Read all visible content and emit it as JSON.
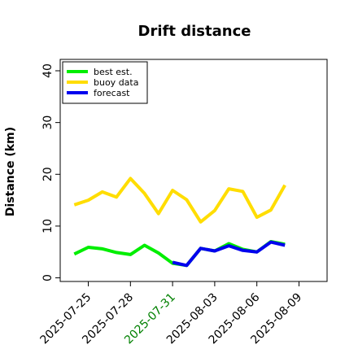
{
  "chart_data": {
    "type": "line",
    "title": "Drift distance",
    "xlabel": "",
    "ylabel": "Distance (km)",
    "x_ticks": [
      "2025-07-25",
      "2025-07-28",
      "2025-07-31",
      "2025-08-03",
      "2025-08-06",
      "2025-08-09"
    ],
    "x_tick_colors": [
      "#000000",
      "#000000",
      "#008000",
      "#000000",
      "#000000",
      "#000000"
    ],
    "xlim": [
      "2025-07-23",
      "2025-08-11"
    ],
    "y_ticks": [
      0,
      10,
      20,
      30,
      40
    ],
    "ylim": [
      -0.7,
      42.2
    ],
    "grid": false,
    "legend_position": "top-left",
    "series": [
      {
        "name": "best est.",
        "color": "#00ee00",
        "x": [
          "2025-07-24",
          "2025-07-25",
          "2025-07-26",
          "2025-07-27",
          "2025-07-28",
          "2025-07-29",
          "2025-07-30",
          "2025-07-31",
          "2025-08-01",
          "2025-08-02",
          "2025-08-03",
          "2025-08-04",
          "2025-08-05",
          "2025-08-06",
          "2025-08-07",
          "2025-08-08"
        ],
        "values": [
          4.6,
          5.9,
          5.6,
          4.9,
          4.5,
          6.3,
          4.8,
          2.8,
          2.4,
          5.7,
          5.2,
          6.6,
          5.5,
          5.0,
          7.0,
          6.5
        ]
      },
      {
        "name": "buoy data",
        "color": "#ffdd00",
        "x": [
          "2025-07-24",
          "2025-07-25",
          "2025-07-26",
          "2025-07-27",
          "2025-07-28",
          "2025-07-29",
          "2025-07-30",
          "2025-07-31",
          "2025-08-01",
          "2025-08-02",
          "2025-08-03",
          "2025-08-04",
          "2025-08-05",
          "2025-08-06",
          "2025-08-07",
          "2025-08-08"
        ],
        "values": [
          14.1,
          15.0,
          16.6,
          15.6,
          19.2,
          16.3,
          12.4,
          16.9,
          15.1,
          10.8,
          13.0,
          17.2,
          16.7,
          11.7,
          13.1,
          17.9
        ]
      },
      {
        "name": "forecast",
        "color": "#0000ee",
        "x": [
          "2025-07-31",
          "2025-08-01",
          "2025-08-02",
          "2025-08-03",
          "2025-08-04",
          "2025-08-05",
          "2025-08-06",
          "2025-08-07",
          "2025-08-08"
        ],
        "values": [
          3.0,
          2.4,
          5.7,
          5.2,
          6.2,
          5.3,
          5.0,
          6.9,
          6.3
        ]
      }
    ]
  }
}
